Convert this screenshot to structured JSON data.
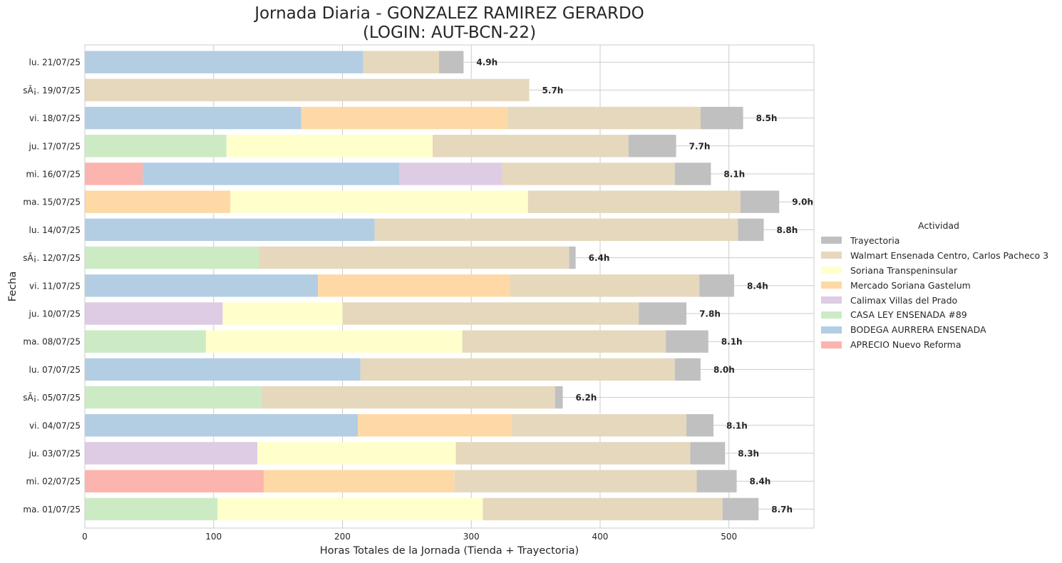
{
  "chart_data": {
    "type": "bar",
    "orientation": "horizontal",
    "stacked": true,
    "title": [
      "Jornada Diaria - GONZALEZ RAMIREZ GERARDO",
      "(LOGIN: AUT-BCN-22)"
    ],
    "xlabel": "Horas Totales de la Jornada (Tienda + Trayectoria)",
    "ylabel": "Fecha",
    "xlim": [
      0,
      566
    ],
    "xticks": [
      0,
      100,
      200,
      300,
      400,
      500
    ],
    "grid": true,
    "legend": {
      "title": "Actividad",
      "placement": "center-right outside"
    },
    "categories": [
      "ma. 01/07/25",
      "mi. 02/07/25",
      "ju. 03/07/25",
      "vi. 04/07/25",
      "sÃ¡. 05/07/25",
      "lu. 07/07/25",
      "ma. 08/07/25",
      "ju. 10/07/25",
      "vi. 11/07/25",
      "sÃ¡. 12/07/25",
      "lu. 14/07/25",
      "ma. 15/07/25",
      "mi. 16/07/25",
      "ju. 17/07/25",
      "vi. 18/07/25",
      "sÃ¡. 19/07/25",
      "lu. 21/07/25"
    ],
    "totals_labels": [
      "8.7h",
      "8.4h",
      "8.3h",
      "8.1h",
      "6.2h",
      "8.0h",
      "8.1h",
      "7.8h",
      "8.4h",
      "6.4h",
      "8.8h",
      "9.0h",
      "8.1h",
      "7.7h",
      "8.5h",
      "5.7h",
      "4.9h"
    ],
    "series": [
      {
        "name": "APRECIO Nuevo Reforma",
        "color": "#fbb4ae",
        "values": [
          0,
          139,
          0,
          0,
          0,
          0,
          0,
          0,
          0,
          0,
          0,
          0,
          45,
          0,
          0,
          0,
          0
        ]
      },
      {
        "name": "BODEGA AURRERA ENSENADA",
        "color": "#b3cde3",
        "values": [
          0,
          0,
          0,
          212,
          0,
          214,
          0,
          0,
          181,
          0,
          225,
          0,
          199,
          0,
          168,
          0,
          216
        ]
      },
      {
        "name": "CASA LEY ENSENADA #89",
        "color": "#ccebc5",
        "values": [
          103,
          0,
          0,
          0,
          137,
          0,
          94,
          0,
          0,
          135,
          0,
          0,
          0,
          110,
          0,
          0,
          0
        ]
      },
      {
        "name": "Calimax Villas del Prado",
        "color": "#decbe4",
        "values": [
          0,
          0,
          134,
          0,
          0,
          0,
          0,
          107,
          0,
          0,
          0,
          0,
          80,
          0,
          0,
          0,
          0
        ]
      },
      {
        "name": "Mercado Soriana Gastelum",
        "color": "#fed9a6",
        "values": [
          0,
          148,
          0,
          119,
          0,
          0,
          0,
          0,
          149,
          0,
          0,
          113,
          0,
          0,
          160,
          0,
          0
        ]
      },
      {
        "name": "Soriana Transpeninsular",
        "color": "#ffffcc",
        "values": [
          206,
          0,
          154,
          0,
          0,
          0,
          199,
          93,
          0,
          0,
          0,
          231,
          0,
          160,
          0,
          0,
          0
        ]
      },
      {
        "name": "Walmart Ensenada Centro, Carlos Pacheco 3",
        "color": "#e5d8bd",
        "values": [
          186,
          188,
          182,
          136,
          228,
          244,
          158,
          230,
          147,
          241,
          282,
          165,
          134,
          152,
          150,
          345,
          59
        ]
      },
      {
        "name": "Trayectoria",
        "color": "#c0c0c0",
        "values": [
          28,
          31,
          27,
          21,
          6,
          20,
          33,
          37,
          27,
          5,
          20,
          30,
          28,
          37,
          33,
          0,
          19
        ]
      }
    ]
  }
}
